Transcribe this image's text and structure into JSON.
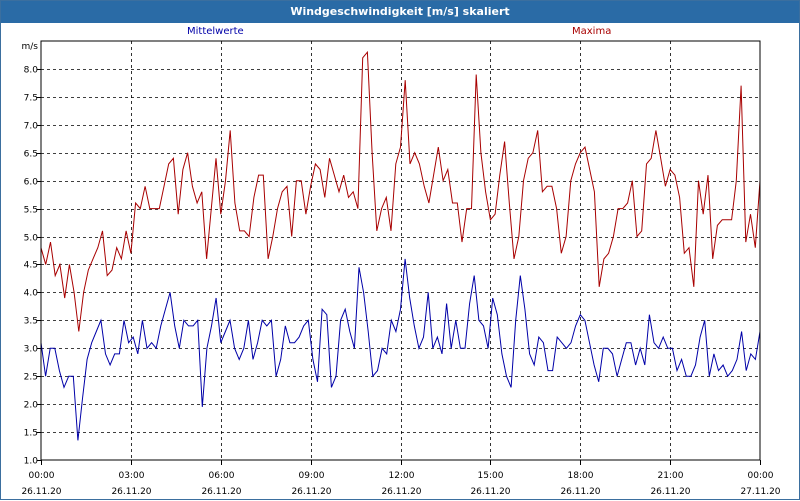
{
  "window": {
    "title": "Windgeschwindigkeit [m/s] skaliert"
  },
  "colors": {
    "title_bar": "#2a6ba6",
    "series_mean": "#0000a8",
    "series_max": "#a80000",
    "grid": "#000000"
  },
  "chart_data": {
    "type": "line",
    "title": "Windgeschwindigkeit [m/s] skaliert",
    "ylabel": "m/s",
    "ylim": [
      1.0,
      8.5
    ],
    "xlim": [
      0,
      24
    ],
    "grid": true,
    "x_ticks": [
      {
        "time": "00:00",
        "date": "26.11.20"
      },
      {
        "time": "03:00",
        "date": "26.11.20"
      },
      {
        "time": "06:00",
        "date": "26.11.20"
      },
      {
        "time": "09:00",
        "date": "26.11.20"
      },
      {
        "time": "12:00",
        "date": "26.11.20"
      },
      {
        "time": "15:00",
        "date": "26.11.20"
      },
      {
        "time": "18:00",
        "date": "26.11.20"
      },
      {
        "time": "21:00",
        "date": "26.11.20"
      },
      {
        "time": "00:00",
        "date": "27.11.20"
      }
    ],
    "y_ticks": [
      "1.0",
      "1.5",
      "2.0",
      "2.5",
      "3.0",
      "3.5",
      "4.0",
      "4.5",
      "5.0",
      "5.5",
      "6.0",
      "6.5",
      "7.0",
      "7.5",
      "8.0"
    ],
    "series": [
      {
        "name": "Mittelwerte",
        "color": "#0000a8",
        "values": [
          3.1,
          2.5,
          3.0,
          3.0,
          2.6,
          2.3,
          2.5,
          2.5,
          1.35,
          2.1,
          2.8,
          3.1,
          3.3,
          3.5,
          2.9,
          2.7,
          2.9,
          2.9,
          3.5,
          3.1,
          3.2,
          2.9,
          3.5,
          3.0,
          3.1,
          3.0,
          3.4,
          3.7,
          4.0,
          3.4,
          3.0,
          3.5,
          3.4,
          3.4,
          3.5,
          1.95,
          3.0,
          3.4,
          3.9,
          3.1,
          3.3,
          3.5,
          3.0,
          2.8,
          3.0,
          3.5,
          2.8,
          3.1,
          3.5,
          3.4,
          3.5,
          2.5,
          2.8,
          3.4,
          3.1,
          3.1,
          3.2,
          3.4,
          3.5,
          2.8,
          2.4,
          3.7,
          3.6,
          2.3,
          2.5,
          3.5,
          3.7,
          3.3,
          3.0,
          4.45,
          4.0,
          3.3,
          2.5,
          2.6,
          3.0,
          2.9,
          3.5,
          3.3,
          3.7,
          4.6,
          3.9,
          3.4,
          3.0,
          3.2,
          4.0,
          3.0,
          3.2,
          2.9,
          3.8,
          3.0,
          3.5,
          3.0,
          3.0,
          3.8,
          4.3,
          3.5,
          3.4,
          3.0,
          3.9,
          3.6,
          2.9,
          2.5,
          2.3,
          3.5,
          4.3,
          3.7,
          2.9,
          2.7,
          3.2,
          3.1,
          2.6,
          2.6,
          3.2,
          3.1,
          3.0,
          3.1,
          3.4,
          3.6,
          3.5,
          3.1,
          2.7,
          2.4,
          3.0,
          3.0,
          2.9,
          2.5,
          2.8,
          3.1,
          3.1,
          2.7,
          3.0,
          2.7,
          3.6,
          3.1,
          3.0,
          3.2,
          3.0,
          3.0,
          2.6,
          2.8,
          2.5,
          2.5,
          2.7,
          3.2,
          3.5,
          2.5,
          2.9,
          2.6,
          2.7,
          2.5,
          2.6,
          2.8,
          3.3,
          2.6,
          2.9,
          2.8,
          3.3
        ]
      },
      {
        "name": "Maxima",
        "color": "#a80000",
        "values": [
          4.8,
          4.5,
          4.9,
          4.3,
          4.5,
          3.9,
          4.5,
          4.0,
          3.3,
          4.0,
          4.4,
          4.6,
          4.8,
          5.1,
          4.3,
          4.4,
          4.8,
          4.6,
          5.1,
          4.7,
          5.6,
          5.5,
          5.9,
          5.5,
          5.5,
          5.5,
          5.9,
          6.3,
          6.4,
          5.4,
          6.2,
          6.5,
          5.9,
          5.6,
          5.8,
          4.6,
          5.5,
          6.4,
          5.4,
          6.0,
          6.9,
          5.6,
          5.1,
          5.1,
          5.0,
          5.7,
          6.1,
          6.1,
          4.6,
          5.0,
          5.5,
          5.8,
          5.9,
          5.0,
          6.0,
          6.0,
          5.4,
          5.9,
          6.3,
          6.2,
          5.7,
          6.4,
          6.1,
          5.8,
          6.1,
          5.7,
          5.8,
          5.5,
          8.2,
          8.3,
          6.5,
          5.1,
          5.5,
          5.7,
          5.1,
          6.3,
          6.6,
          7.8,
          6.3,
          6.5,
          6.3,
          5.9,
          5.6,
          6.1,
          6.6,
          6.0,
          6.2,
          5.6,
          5.6,
          4.9,
          5.5,
          5.5,
          7.9,
          6.5,
          5.8,
          5.3,
          5.4,
          6.1,
          6.7,
          5.6,
          4.6,
          5.0,
          6.0,
          6.4,
          6.5,
          6.9,
          5.8,
          5.9,
          5.9,
          5.5,
          4.7,
          5.0,
          6.0,
          6.3,
          6.5,
          6.6,
          6.2,
          5.8,
          4.1,
          4.6,
          4.7,
          5.0,
          5.5,
          5.5,
          5.6,
          6.0,
          5.0,
          5.1,
          6.3,
          6.4,
          6.9,
          6.4,
          5.9,
          6.2,
          6.1,
          5.7,
          4.7,
          4.8,
          4.1,
          6.0,
          5.4,
          6.1,
          4.6,
          5.2,
          5.3,
          5.3,
          5.3,
          6.0,
          7.7,
          4.9,
          5.4,
          4.8,
          6.0
        ]
      }
    ]
  }
}
